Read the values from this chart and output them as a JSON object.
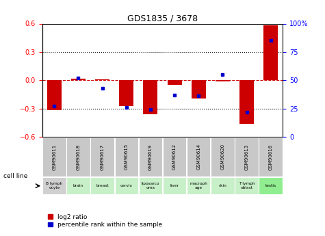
{
  "title": "GDS1835 / 3678",
  "gsm_labels": [
    "GSM90611",
    "GSM90618",
    "GSM90617",
    "GSM90615",
    "GSM90619",
    "GSM90612",
    "GSM90614",
    "GSM90620",
    "GSM90613",
    "GSM90616"
  ],
  "cell_labels": [
    "B lymph\nocyte",
    "brain",
    "breast",
    "cervix",
    "liposarco\noma",
    "liver",
    "macroph\nage",
    "skin",
    "T lymph\noblast",
    "testis"
  ],
  "cell_bg_colors": [
    "#d0d0d0",
    "#c8f0c8",
    "#c8f0c8",
    "#c8f0c8",
    "#c8f0c8",
    "#c8f0c8",
    "#c8f0c8",
    "#c8f0c8",
    "#c8f0c8",
    "#90ee90"
  ],
  "log2_ratios": [
    -0.315,
    0.02,
    0.01,
    -0.27,
    -0.36,
    -0.05,
    -0.19,
    -0.01,
    -0.46,
    0.585
  ],
  "percentile_ranks": [
    27,
    52,
    43,
    26,
    24,
    37,
    36,
    55,
    22,
    85
  ],
  "ylim": [
    -0.6,
    0.6
  ],
  "yticks_left": [
    -0.6,
    -0.3,
    0.0,
    0.3,
    0.6
  ],
  "yticks_right": [
    0,
    25,
    50,
    75,
    100
  ],
  "bar_color": "#cc0000",
  "dot_color": "#0000cc",
  "dashed_line_color": "#cc0000",
  "grid_color": "#000000",
  "legend_red_label": "log2 ratio",
  "legend_blue_label": "percentile rank within the sample",
  "cell_line_label": "cell line"
}
